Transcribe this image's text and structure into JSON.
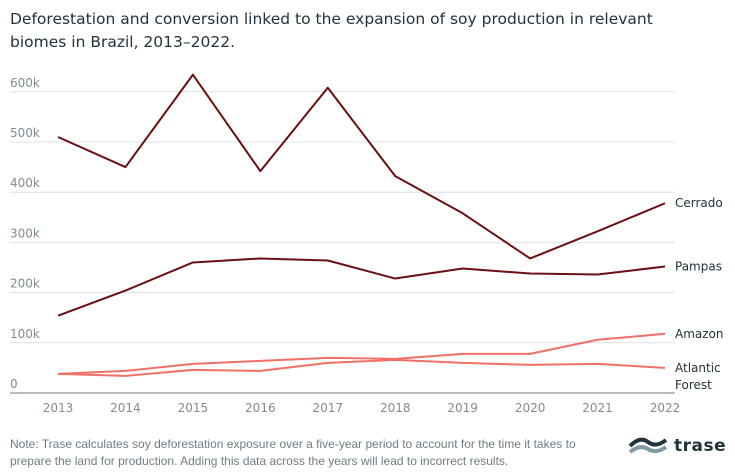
{
  "title": "Deforestation and conversion linked to the expansion of soy production in relevant biomes in Brazil, 2013–2022.",
  "note": "Note: Trase calculates soy deforestation exposure over a five-year period to account for the time it takes to prepare the land for production. Adding this data across the years will lead to incorrect results.",
  "logo_text": "trase",
  "chart_data": {
    "type": "line",
    "title": "Deforestation and conversion linked to the expansion of soy production in relevant biomes in Brazil, 2013–2022.",
    "xlabel": "",
    "ylabel": "",
    "x": [
      "2013",
      "2014",
      "2015",
      "2016",
      "2017",
      "2018",
      "2019",
      "2020",
      "2021",
      "2022"
    ],
    "ylim": [
      0,
      620000
    ],
    "yticks": [
      0,
      100000,
      200000,
      300000,
      400000,
      500000,
      600000
    ],
    "ytick_labels": [
      "0",
      "100k",
      "200k",
      "300k",
      "400k",
      "500k",
      "600k"
    ],
    "grid": true,
    "legend": "direct labels at right end of lines",
    "series": [
      {
        "name": "Cerrado",
        "color": "#6b0f12",
        "values": [
          510000,
          450000,
          634000,
          442000,
          608000,
          432000,
          358000,
          268000,
          322000,
          378000
        ]
      },
      {
        "name": "Pampas",
        "color": "#6b0f12",
        "values": [
          154000,
          204000,
          260000,
          268000,
          264000,
          228000,
          248000,
          238000,
          236000,
          252000
        ]
      },
      {
        "name": "Amazon",
        "color": "#f07068",
        "values": [
          38000,
          44000,
          58000,
          64000,
          70000,
          68000,
          78000,
          78000,
          106000,
          118000
        ]
      },
      {
        "name": "Atlantic Forest",
        "color": "#f07068",
        "values": [
          38000,
          34000,
          46000,
          44000,
          60000,
          66000,
          60000,
          56000,
          58000,
          50000
        ]
      }
    ]
  }
}
